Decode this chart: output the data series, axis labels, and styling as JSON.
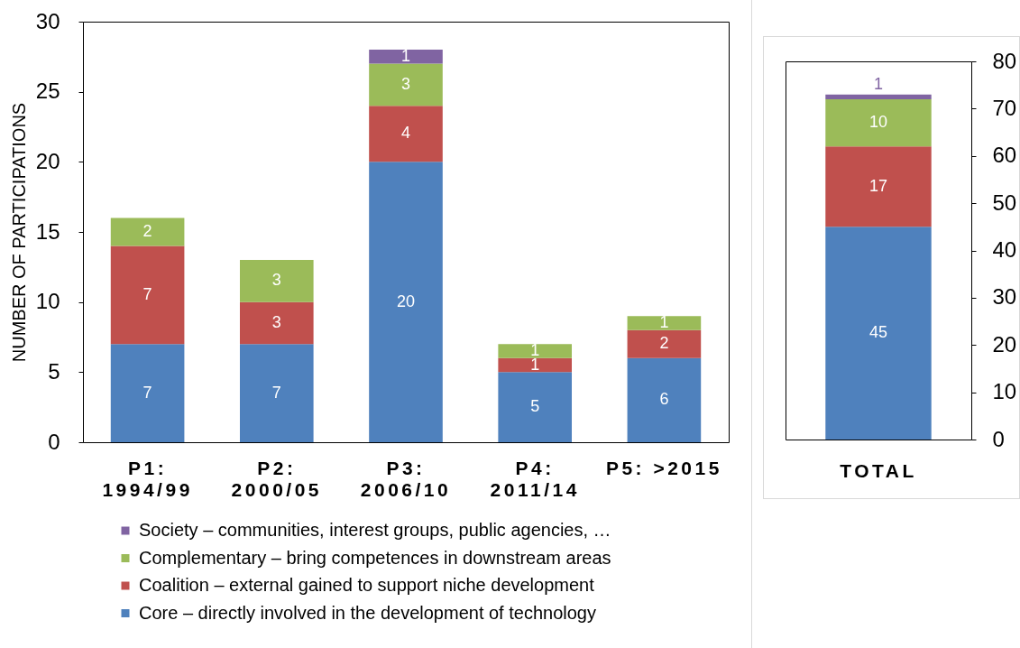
{
  "chart_data": [
    {
      "type": "bar",
      "stacked": true,
      "categories": [
        "P1: 1994/99",
        "P2: 2000/05",
        "P3: 2006/10",
        "P4: 2011/14",
        "P5: >2015"
      ],
      "ylabel": "NUMBER OF PARTICIPATIONS",
      "ylim": [
        0,
        30
      ],
      "yticks": [
        0,
        5,
        10,
        15,
        20,
        25,
        30
      ],
      "series": [
        {
          "name": "Core – directly involved in the development of technology",
          "color": "#4f81bd",
          "values": [
            7,
            7,
            20,
            5,
            6
          ]
        },
        {
          "name": "Coalition – external gained to support niche development",
          "color": "#c0504d",
          "values": [
            7,
            3,
            4,
            1,
            2
          ]
        },
        {
          "name": "Complementary – bring competences in downstream areas",
          "color": "#9bbb59",
          "values": [
            2,
            3,
            3,
            1,
            1
          ]
        },
        {
          "name": "Society – communities, interest groups, public agencies, …",
          "color": "#8064a2",
          "values": [
            null,
            null,
            1,
            null,
            null
          ]
        }
      ],
      "data_labels": true,
      "legend": "bottom"
    },
    {
      "type": "bar",
      "stacked": true,
      "categories": [
        "TOTAL"
      ],
      "y2lim": [
        0,
        80
      ],
      "y2ticks": [
        0,
        10,
        20,
        30,
        40,
        50,
        60,
        70,
        80
      ],
      "series": [
        {
          "color": "#4f81bd",
          "values": [
            45
          ],
          "axis": "y2"
        },
        {
          "color": "#c0504d",
          "values": [
            17
          ],
          "axis": "y2"
        },
        {
          "color": "#9bbb59",
          "values": [
            10
          ],
          "axis": "y2"
        },
        {
          "color": "#8064a2",
          "values": [
            1
          ],
          "axis": "y2"
        }
      ],
      "data_labels": true
    }
  ]
}
